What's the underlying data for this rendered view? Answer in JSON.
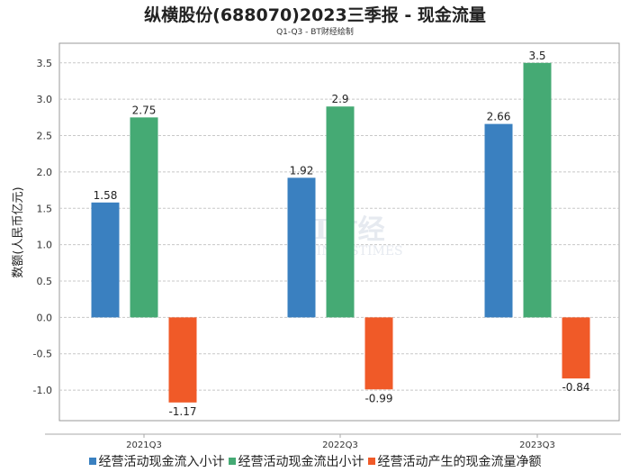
{
  "chart_data": {
    "type": "bar",
    "title": "纵横股份(688070)2023三季报 - 现金流量",
    "subtitle": "Q1-Q3 - BT财经绘制",
    "ylabel": "数额(人民币亿元)",
    "xlabel": "",
    "categories": [
      "2021Q3",
      "2022Q3",
      "2023Q3"
    ],
    "series": [
      {
        "name": "经营活动现金流入小计",
        "color": "#3a80c0",
        "values": [
          1.58,
          1.92,
          2.66
        ],
        "labels": [
          "1.58",
          "1.92",
          "2.66"
        ]
      },
      {
        "name": "经营活动现金流出小计",
        "color": "#45aa74",
        "values": [
          2.75,
          2.9,
          3.5
        ],
        "labels": [
          "2.75",
          "2.9",
          "3.5"
        ]
      },
      {
        "name": "经营活动产生的现金流量净额",
        "color": "#f05a28",
        "values": [
          -1.17,
          -0.99,
          -0.84
        ],
        "labels": [
          "-1.17",
          "-0.99",
          "-0.84"
        ]
      }
    ],
    "ylim": [
      -1.42,
      3.77
    ],
    "yticks": [
      -1.0,
      -0.5,
      0.0,
      0.5,
      1.0,
      1.5,
      2.0,
      2.5,
      3.0,
      3.5
    ],
    "ytick_labels": [
      "-1.0",
      "-0.5",
      "0.0",
      "0.5",
      "1.0",
      "1.5",
      "2.0",
      "2.5",
      "3.0",
      "3.5"
    ],
    "grid": true,
    "legend": "bottom",
    "watermark": "BT财经 BUSINESSTIMES"
  }
}
